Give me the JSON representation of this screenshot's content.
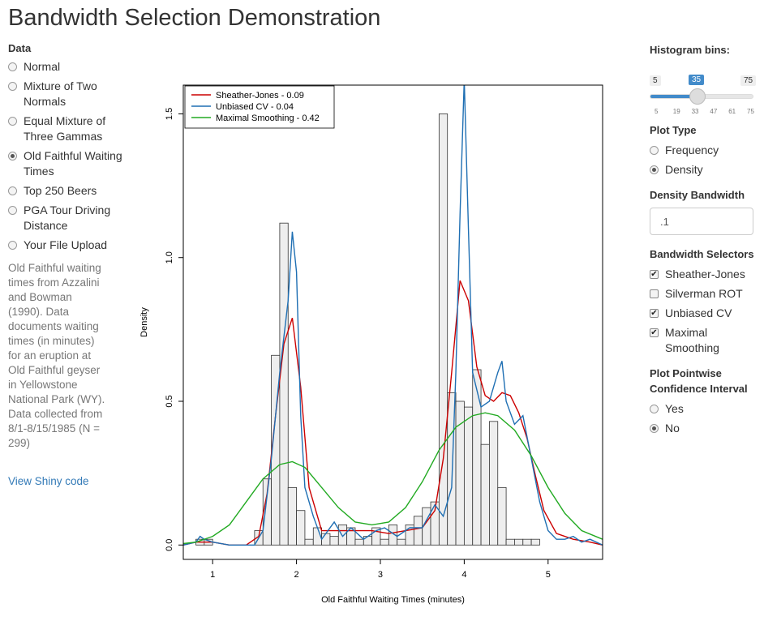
{
  "title": "Bandwidth Selection Demonstration",
  "data_section": {
    "label": "Data",
    "options": [
      {
        "label": "Normal",
        "selected": false
      },
      {
        "label": "Mixture of Two Normals",
        "selected": false
      },
      {
        "label": "Equal Mixture of Three Gammas",
        "selected": false
      },
      {
        "label": "Old Faithful Waiting Times",
        "selected": true
      },
      {
        "label": "Top 250 Beers",
        "selected": false
      },
      {
        "label": "PGA Tour Driving Distance",
        "selected": false
      },
      {
        "label": "Your File Upload",
        "selected": false
      }
    ],
    "description": "Old Faithful waiting times from Azzalini and Bowman (1990). Data documents waiting times (in minutes) for an eruption at Old Faithful geyser in Yellowstone National Park (WY). Data collected from 8/1-8/15/1985 (N = 299)",
    "link": "View Shiny code"
  },
  "controls": {
    "bins": {
      "label": "Histogram bins:",
      "min": 5,
      "max": 75,
      "value": 35,
      "ticks": [
        "5",
        "19",
        "33",
        "47",
        "61",
        "75"
      ]
    },
    "plot_type": {
      "label": "Plot Type",
      "options": [
        {
          "label": "Frequency",
          "selected": false
        },
        {
          "label": "Density",
          "selected": true
        }
      ]
    },
    "bandwidth": {
      "label": "Density Bandwidth",
      "value": ".1"
    },
    "selectors": {
      "label": "Bandwidth Selectors",
      "options": [
        {
          "label": "Sheather-Jones",
          "checked": true
        },
        {
          "label": "Silverman ROT",
          "checked": false
        },
        {
          "label": "Unbiased CV",
          "checked": true
        },
        {
          "label": "Maximal Smoothing",
          "checked": true
        }
      ]
    },
    "confidence": {
      "label": "Plot Pointwise Confidence Interval",
      "options": [
        {
          "label": "Yes",
          "selected": false
        },
        {
          "label": "No",
          "selected": true
        }
      ]
    }
  },
  "chart_data": {
    "type": "bar",
    "xlabel": "Old Faithful Waiting Times (minutes)",
    "ylabel": "Density",
    "xlim": [
      0.65,
      5.65
    ],
    "ylim": [
      -0.05,
      1.6
    ],
    "xticks": [
      1,
      2,
      3,
      4,
      5
    ],
    "yticks": [
      "0.0",
      "0.5",
      "1.0",
      "1.5"
    ],
    "bin_width": 0.1,
    "bins_left": [
      0.8,
      0.9,
      1.0,
      1.1,
      1.2,
      1.3,
      1.4,
      1.5,
      1.6,
      1.7,
      1.8,
      1.9,
      2.0,
      2.1,
      2.2,
      2.3,
      2.4,
      2.5,
      2.6,
      2.7,
      2.8,
      2.9,
      3.0,
      3.1,
      3.2,
      3.3,
      3.4,
      3.5,
      3.6,
      3.7,
      3.8,
      3.9,
      4.0,
      4.1,
      4.2,
      4.3,
      4.4,
      4.5,
      4.6,
      4.7,
      4.8,
      4.9,
      5.0,
      5.1,
      5.2,
      5.3,
      5.4
    ],
    "density": [
      0.02,
      0.02,
      0,
      0,
      0,
      0,
      0,
      0.05,
      0.23,
      0.66,
      1.12,
      0.2,
      0.12,
      0.02,
      0.06,
      0.04,
      0.03,
      0.07,
      0.06,
      0.02,
      0.03,
      0.06,
      0.02,
      0.07,
      0.02,
      0.07,
      0.1,
      0.13,
      0.15,
      1.5,
      0.53,
      0.5,
      0.48,
      0.61,
      0.35,
      0.43,
      0.2,
      0.02,
      0.02,
      0.02,
      0.02,
      0,
      0,
      0,
      0,
      0,
      0
    ],
    "legend": {
      "position": "top-left",
      "entries": [
        {
          "name": "Sheather-Jones - 0.09",
          "color": "#cc0000"
        },
        {
          "name": "Unbiased CV - 0.04",
          "color": "#1f6fb3"
        },
        {
          "name": "Maximal Smoothing - 0.42",
          "color": "#22aa22"
        }
      ]
    },
    "series": [
      {
        "name": "Sheather-Jones - 0.09",
        "color": "#cc0000",
        "x": [
          0.65,
          0.8,
          0.9,
          1.0,
          1.2,
          1.4,
          1.55,
          1.65,
          1.75,
          1.85,
          1.95,
          2.05,
          2.15,
          2.3,
          2.5,
          2.7,
          2.9,
          3.1,
          3.3,
          3.5,
          3.65,
          3.75,
          3.85,
          3.95,
          4.05,
          4.15,
          4.25,
          4.35,
          4.45,
          4.55,
          4.65,
          4.75,
          4.85,
          4.95,
          5.1,
          5.3,
          5.5,
          5.65
        ],
        "y": [
          0,
          0.01,
          0.01,
          0.01,
          0,
          0,
          0.03,
          0.18,
          0.45,
          0.7,
          0.79,
          0.55,
          0.2,
          0.05,
          0.05,
          0.05,
          0.05,
          0.04,
          0.05,
          0.06,
          0.12,
          0.3,
          0.6,
          0.92,
          0.85,
          0.62,
          0.52,
          0.5,
          0.53,
          0.52,
          0.46,
          0.37,
          0.24,
          0.12,
          0.04,
          0.02,
          0.01,
          0
        ]
      },
      {
        "name": "Unbiased CV - 0.04",
        "color": "#1f6fb3",
        "x": [
          0.65,
          0.8,
          0.85,
          0.9,
          1.0,
          1.2,
          1.5,
          1.6,
          1.7,
          1.8,
          1.9,
          1.95,
          2.0,
          2.05,
          2.1,
          2.2,
          2.3,
          2.45,
          2.55,
          2.65,
          2.8,
          2.95,
          3.05,
          3.2,
          3.35,
          3.5,
          3.65,
          3.75,
          3.85,
          3.9,
          3.95,
          4.0,
          4.05,
          4.1,
          4.2,
          4.3,
          4.4,
          4.45,
          4.5,
          4.6,
          4.7,
          4.8,
          4.9,
          5.0,
          5.1,
          5.2,
          5.3,
          5.4,
          5.5,
          5.65
        ],
        "y": [
          0,
          0.01,
          0.03,
          0.02,
          0.01,
          0,
          0,
          0.05,
          0.3,
          0.6,
          0.85,
          1.09,
          0.95,
          0.45,
          0.2,
          0.1,
          0.02,
          0.08,
          0.03,
          0.06,
          0.02,
          0.05,
          0.06,
          0.03,
          0.06,
          0.06,
          0.14,
          0.1,
          0.2,
          0.6,
          1.15,
          1.62,
          1.1,
          0.6,
          0.48,
          0.5,
          0.6,
          0.64,
          0.5,
          0.42,
          0.45,
          0.3,
          0.15,
          0.05,
          0.02,
          0.02,
          0.03,
          0.01,
          0.02,
          0
        ]
      },
      {
        "name": "Maximal Smoothing - 0.42",
        "color": "#22aa22",
        "x": [
          0.65,
          0.8,
          1.0,
          1.2,
          1.4,
          1.6,
          1.8,
          1.95,
          2.1,
          2.3,
          2.5,
          2.7,
          2.9,
          3.1,
          3.3,
          3.5,
          3.7,
          3.9,
          4.1,
          4.25,
          4.4,
          4.6,
          4.8,
          5.0,
          5.2,
          5.4,
          5.65
        ],
        "y": [
          0.005,
          0.01,
          0.03,
          0.07,
          0.15,
          0.23,
          0.28,
          0.29,
          0.27,
          0.2,
          0.13,
          0.08,
          0.07,
          0.08,
          0.13,
          0.22,
          0.33,
          0.41,
          0.45,
          0.46,
          0.45,
          0.4,
          0.31,
          0.2,
          0.11,
          0.05,
          0.02
        ]
      }
    ]
  }
}
